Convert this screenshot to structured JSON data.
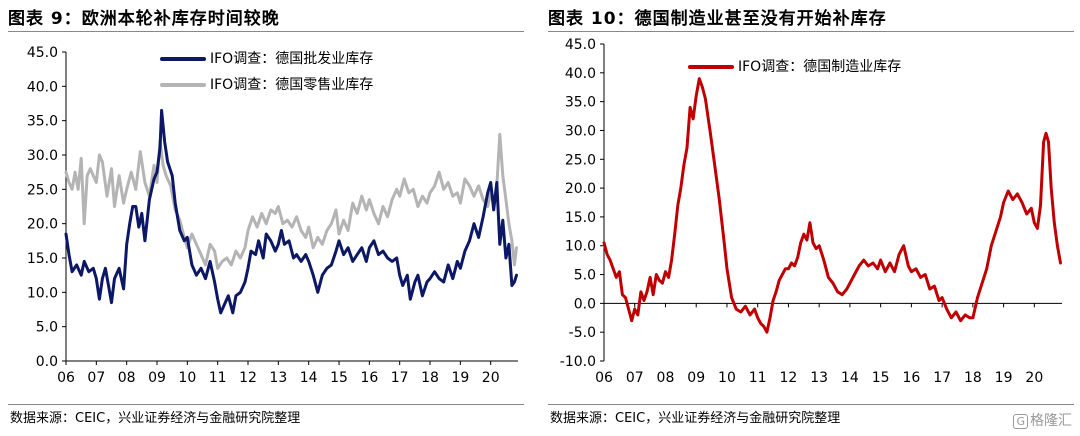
{
  "charts": [
    {
      "title": "图表 9：欧洲本轮补库存时间较晚",
      "source": "数据来源：CEIC，兴业证券经济与金融研究院整理"
    },
    {
      "title": "图表 10：德国制造业甚至没有开始补库存",
      "source": "数据来源：CEIC，兴业证券经济与金融研究院整理"
    }
  ],
  "watermark": {
    "logo": "G",
    "text": "格隆汇"
  },
  "colors": {
    "navy": "#0c1866",
    "grey": "#b4b4b4",
    "red": "#c00000"
  },
  "chart_data": [
    {
      "type": "line",
      "title": "图表 9：欧洲本轮补库存时间较晚",
      "xlabel": "",
      "ylabel": "",
      "xlim": [
        2006,
        2020.9
      ],
      "ylim": [
        0,
        45
      ],
      "yticks": [
        "0.0",
        "5.0",
        "10.0",
        "15.0",
        "20.0",
        "25.0",
        "30.0",
        "35.0",
        "40.0",
        "45.0"
      ],
      "yticks_values": [
        0,
        5,
        10,
        15,
        20,
        25,
        30,
        35,
        40,
        45
      ],
      "xticks": [
        "06",
        "07",
        "08",
        "09",
        "10",
        "11",
        "12",
        "13",
        "14",
        "15",
        "16",
        "17",
        "18",
        "19",
        "20"
      ],
      "xticks_values": [
        2006,
        2007,
        2008,
        2009,
        2010,
        2011,
        2012,
        2013,
        2014,
        2015,
        2016,
        2017,
        2018,
        2019,
        2020
      ],
      "grid": false,
      "legend": "top-left",
      "series": [
        {
          "name": "IFO调查：德国批发业库存",
          "color": "#0c1866",
          "x": [
            2006.0,
            2006.1,
            2006.2,
            2006.35,
            2006.5,
            2006.6,
            2006.75,
            2006.9,
            2007.0,
            2007.1,
            2007.2,
            2007.3,
            2007.4,
            2007.5,
            2007.6,
            2007.75,
            2007.9,
            2008.0,
            2008.1,
            2008.2,
            2008.3,
            2008.4,
            2008.5,
            2008.6,
            2008.75,
            2008.9,
            2009.0,
            2009.1,
            2009.15,
            2009.25,
            2009.35,
            2009.5,
            2009.6,
            2009.75,
            2009.9,
            2010.0,
            2010.15,
            2010.3,
            2010.45,
            2010.6,
            2010.75,
            2010.9,
            2011.0,
            2011.1,
            2011.2,
            2011.35,
            2011.5,
            2011.6,
            2011.75,
            2011.9,
            2012.0,
            2012.1,
            2012.25,
            2012.35,
            2012.5,
            2012.6,
            2012.75,
            2012.9,
            2013.0,
            2013.1,
            2013.2,
            2013.35,
            2013.5,
            2013.6,
            2013.75,
            2013.9,
            2014.0,
            2014.15,
            2014.3,
            2014.45,
            2014.6,
            2014.75,
            2014.9,
            2015.0,
            2015.15,
            2015.3,
            2015.45,
            2015.6,
            2015.75,
            2015.9,
            2016.0,
            2016.15,
            2016.3,
            2016.45,
            2016.6,
            2016.75,
            2016.9,
            2017.0,
            2017.1,
            2017.25,
            2017.35,
            2017.5,
            2017.6,
            2017.75,
            2017.9,
            2018.0,
            2018.15,
            2018.3,
            2018.45,
            2018.6,
            2018.75,
            2018.9,
            2019.0,
            2019.15,
            2019.3,
            2019.45,
            2019.6,
            2019.75,
            2019.9,
            2020.0,
            2020.1,
            2020.2,
            2020.3,
            2020.4,
            2020.5,
            2020.6,
            2020.7,
            2020.78,
            2020.85
          ],
          "y": [
            18.5,
            15.5,
            13.0,
            14.0,
            12.5,
            14.5,
            13.0,
            13.5,
            12.0,
            9.0,
            12.0,
            13.5,
            11.0,
            8.5,
            12.0,
            13.5,
            10.5,
            17.0,
            20.0,
            22.5,
            22.5,
            19.5,
            21.5,
            17.5,
            23.5,
            26.5,
            27.5,
            31.0,
            36.5,
            32.0,
            29.0,
            27.0,
            23.0,
            19.0,
            17.5,
            18.0,
            14.0,
            12.5,
            13.5,
            12.0,
            14.5,
            11.5,
            9.0,
            7.0,
            8.0,
            9.5,
            7.0,
            9.5,
            10.0,
            11.5,
            13.5,
            16.0,
            15.5,
            17.5,
            15.0,
            18.5,
            17.5,
            16.0,
            17.0,
            19.0,
            17.0,
            17.5,
            15.0,
            15.5,
            14.5,
            15.5,
            14.5,
            12.5,
            10.0,
            12.5,
            13.5,
            14.0,
            16.0,
            17.5,
            15.5,
            16.5,
            14.5,
            15.5,
            16.5,
            14.5,
            16.5,
            17.5,
            15.5,
            16.0,
            15.0,
            14.5,
            15.0,
            12.5,
            11.0,
            12.5,
            9.0,
            11.5,
            12.5,
            9.5,
            11.5,
            12.0,
            13.0,
            12.0,
            11.5,
            14.0,
            12.0,
            14.5,
            13.5,
            16.0,
            17.5,
            20.0,
            18.0,
            21.0,
            24.5,
            26.0,
            22.0,
            26.0,
            17.0,
            20.5,
            15.0,
            17.0,
            11.0,
            11.5,
            12.5
          ]
        },
        {
          "name": "IFO调查：德国零售业库存",
          "color": "#b4b4b4",
          "x": [
            2006.0,
            2006.1,
            2006.2,
            2006.3,
            2006.4,
            2006.5,
            2006.6,
            2006.7,
            2006.8,
            2006.9,
            2007.0,
            2007.1,
            2007.2,
            2007.35,
            2007.5,
            2007.6,
            2007.75,
            2007.9,
            2008.0,
            2008.15,
            2008.3,
            2008.45,
            2008.6,
            2008.75,
            2008.9,
            2009.0,
            2009.1,
            2009.2,
            2009.3,
            2009.45,
            2009.6,
            2009.75,
            2009.9,
            2010.0,
            2010.15,
            2010.3,
            2010.45,
            2010.6,
            2010.75,
            2010.9,
            2011.0,
            2011.15,
            2011.3,
            2011.45,
            2011.6,
            2011.75,
            2011.9,
            2012.0,
            2012.15,
            2012.3,
            2012.45,
            2012.6,
            2012.75,
            2012.9,
            2013.0,
            2013.15,
            2013.3,
            2013.45,
            2013.6,
            2013.75,
            2013.9,
            2014.0,
            2014.15,
            2014.3,
            2014.45,
            2014.6,
            2014.75,
            2014.9,
            2015.0,
            2015.15,
            2015.3,
            2015.45,
            2015.6,
            2015.75,
            2015.9,
            2016.0,
            2016.15,
            2016.3,
            2016.45,
            2016.6,
            2016.75,
            2016.9,
            2017.0,
            2017.15,
            2017.3,
            2017.45,
            2017.6,
            2017.75,
            2017.9,
            2018.0,
            2018.15,
            2018.3,
            2018.45,
            2018.6,
            2018.75,
            2018.9,
            2019.0,
            2019.15,
            2019.3,
            2019.45,
            2019.6,
            2019.75,
            2019.9,
            2020.0,
            2020.1,
            2020.2,
            2020.3,
            2020.4,
            2020.5,
            2020.6,
            2020.7,
            2020.78,
            2020.85
          ],
          "y": [
            27.5,
            26.0,
            25.0,
            27.5,
            25.0,
            29.5,
            20.0,
            27.0,
            28.0,
            27.0,
            26.0,
            30.0,
            29.0,
            24.0,
            28.0,
            22.5,
            27.0,
            23.0,
            25.0,
            27.5,
            25.0,
            30.5,
            26.0,
            24.0,
            28.5,
            26.0,
            32.0,
            28.5,
            27.0,
            25.5,
            22.0,
            20.5,
            18.0,
            16.5,
            18.5,
            17.0,
            15.5,
            14.0,
            17.0,
            16.0,
            13.5,
            14.5,
            15.0,
            14.0,
            16.0,
            15.0,
            16.5,
            19.0,
            21.0,
            19.5,
            21.5,
            20.0,
            22.0,
            21.5,
            22.5,
            20.0,
            20.5,
            19.5,
            21.0,
            19.0,
            18.0,
            19.5,
            16.5,
            18.0,
            17.0,
            19.0,
            20.0,
            22.0,
            18.5,
            20.5,
            19.0,
            23.0,
            21.5,
            24.0,
            22.0,
            23.5,
            21.5,
            20.0,
            22.5,
            21.0,
            23.5,
            25.0,
            24.0,
            26.5,
            24.5,
            25.0,
            22.5,
            24.0,
            23.0,
            24.5,
            25.5,
            27.5,
            25.0,
            26.0,
            24.0,
            24.5,
            23.0,
            26.5,
            25.5,
            24.0,
            25.5,
            23.5,
            22.5,
            24.5,
            23.0,
            25.5,
            33.0,
            27.0,
            23.5,
            20.0,
            17.5,
            14.0,
            16.5
          ]
        }
      ]
    },
    {
      "type": "line",
      "title": "图表 10：德国制造业甚至没有开始补库存",
      "xlabel": "",
      "ylabel": "",
      "xlim": [
        2006,
        2020.9
      ],
      "ylim": [
        -10,
        45
      ],
      "yticks": [
        "-10.0",
        "-5.0",
        "0.0",
        "5.0",
        "10.0",
        "15.0",
        "20.0",
        "25.0",
        "30.0",
        "35.0",
        "40.0",
        "45.0"
      ],
      "yticks_values": [
        -10,
        -5,
        0,
        5,
        10,
        15,
        20,
        25,
        30,
        35,
        40,
        45
      ],
      "xticks": [
        "06",
        "07",
        "08",
        "09",
        "10",
        "11",
        "12",
        "13",
        "14",
        "15",
        "16",
        "17",
        "18",
        "19",
        "20"
      ],
      "xticks_values": [
        2006,
        2007,
        2008,
        2009,
        2010,
        2011,
        2012,
        2013,
        2014,
        2015,
        2016,
        2017,
        2018,
        2019,
        2020
      ],
      "grid": false,
      "legend": "top-left",
      "series": [
        {
          "name": "IFO调查：德国制造业库存",
          "color": "#c00000",
          "x": [
            2006.0,
            2006.1,
            2006.2,
            2006.3,
            2006.4,
            2006.5,
            2006.6,
            2006.7,
            2006.8,
            2006.9,
            2007.0,
            2007.1,
            2007.2,
            2007.3,
            2007.4,
            2007.5,
            2007.6,
            2007.7,
            2007.8,
            2007.9,
            2008.0,
            2008.1,
            2008.2,
            2008.3,
            2008.4,
            2008.5,
            2008.6,
            2008.7,
            2008.8,
            2008.9,
            2009.0,
            2009.1,
            2009.2,
            2009.3,
            2009.45,
            2009.6,
            2009.75,
            2009.9,
            2010.0,
            2010.15,
            2010.3,
            2010.45,
            2010.6,
            2010.75,
            2010.9,
            2011.0,
            2011.1,
            2011.2,
            2011.3,
            2011.4,
            2011.5,
            2011.6,
            2011.7,
            2011.8,
            2011.9,
            2012.0,
            2012.1,
            2012.2,
            2012.3,
            2012.4,
            2012.5,
            2012.6,
            2012.7,
            2012.8,
            2012.9,
            2013.0,
            2013.15,
            2013.3,
            2013.45,
            2013.6,
            2013.75,
            2013.9,
            2014.0,
            2014.15,
            2014.3,
            2014.45,
            2014.6,
            2014.75,
            2014.9,
            2015.0,
            2015.15,
            2015.3,
            2015.45,
            2015.6,
            2015.75,
            2015.9,
            2016.0,
            2016.15,
            2016.3,
            2016.45,
            2016.6,
            2016.75,
            2016.9,
            2017.0,
            2017.15,
            2017.3,
            2017.45,
            2017.6,
            2017.75,
            2017.9,
            2018.0,
            2018.15,
            2018.3,
            2018.45,
            2018.6,
            2018.75,
            2018.9,
            2019.0,
            2019.15,
            2019.3,
            2019.45,
            2019.6,
            2019.75,
            2019.9,
            2020.0,
            2020.1,
            2020.2,
            2020.3,
            2020.38,
            2020.46,
            2020.55,
            2020.65,
            2020.75,
            2020.85
          ],
          "y": [
            10.5,
            8.5,
            7.5,
            6.0,
            4.5,
            5.5,
            1.5,
            1.0,
            -1.0,
            -3.0,
            -1.0,
            -2.0,
            2.0,
            0.5,
            2.0,
            4.5,
            1.5,
            5.0,
            4.0,
            3.5,
            5.5,
            4.5,
            7.5,
            12.0,
            17.0,
            20.0,
            24.0,
            27.0,
            34.0,
            32.0,
            36.0,
            39.0,
            37.5,
            35.5,
            30.0,
            24.0,
            18.0,
            11.0,
            6.0,
            1.0,
            -1.0,
            -1.5,
            -0.5,
            -2.0,
            -1.0,
            -2.5,
            -3.5,
            -4.0,
            -5.0,
            -2.5,
            0.5,
            2.0,
            4.0,
            5.0,
            6.0,
            6.0,
            7.0,
            6.5,
            8.0,
            10.5,
            12.0,
            11.0,
            14.0,
            10.5,
            9.5,
            10.0,
            7.5,
            4.5,
            3.5,
            2.0,
            1.5,
            2.5,
            3.5,
            5.0,
            6.5,
            7.5,
            6.5,
            7.0,
            6.0,
            7.5,
            5.5,
            7.0,
            5.5,
            8.5,
            10.0,
            6.5,
            5.5,
            6.0,
            4.5,
            5.0,
            2.5,
            3.0,
            0.5,
            1.0,
            -1.0,
            -2.5,
            -1.5,
            -3.0,
            -2.0,
            -2.5,
            -2.5,
            1.0,
            3.5,
            6.0,
            10.0,
            12.5,
            15.0,
            17.5,
            19.5,
            18.0,
            19.0,
            17.5,
            15.5,
            16.5,
            14.0,
            13.0,
            17.0,
            28.0,
            29.5,
            28.0,
            20.0,
            14.0,
            10.0,
            7.0
          ]
        }
      ]
    }
  ]
}
